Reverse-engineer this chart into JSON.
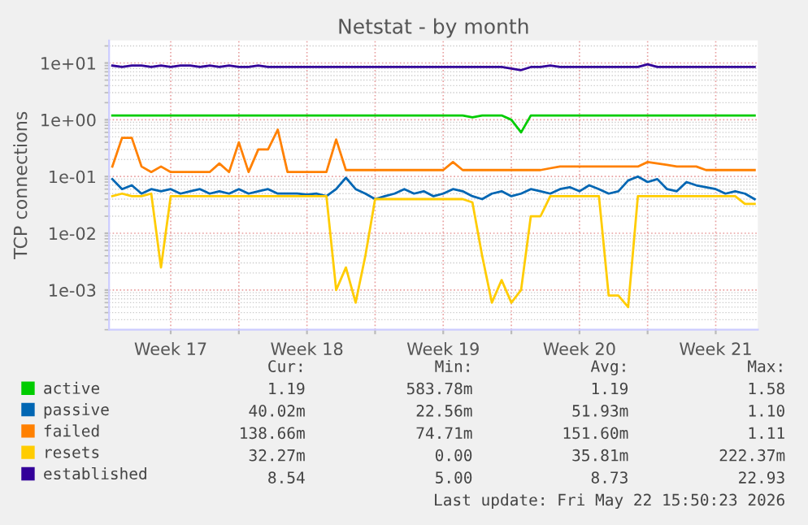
{
  "chart_data": {
    "type": "line",
    "title": "Netstat - by month",
    "ylabel": "TCP connections",
    "log": "y",
    "grid": true,
    "legend": "bottom left",
    "marker": "none",
    "line_style": "solid",
    "ylim": [
      0.0002,
      25
    ],
    "yticks": [
      {
        "value": 0.001,
        "label": "1e-03"
      },
      {
        "value": 0.01,
        "label": "1e-02"
      },
      {
        "value": 0.1,
        "label": "1e-01"
      },
      {
        "value": 1,
        "label": "1e+00"
      },
      {
        "value": 10,
        "label": "1e+01"
      }
    ],
    "xlim": [
      "2026-04-20T08:00",
      "2026-05-23T16:00"
    ],
    "xticks": [
      {
        "value": "2026-04-23T12:00",
        "label": "Week 17"
      },
      {
        "value": "2026-04-27",
        "label": null
      },
      {
        "value": "2026-04-30T12:00",
        "label": "Week 18"
      },
      {
        "value": "2026-05-04",
        "label": null
      },
      {
        "value": "2026-05-07T12:00",
        "label": "Week 19"
      },
      {
        "value": "2026-05-11",
        "label": null
      },
      {
        "value": "2026-05-14T12:00",
        "label": "Week 20"
      },
      {
        "value": "2026-05-18",
        "label": null
      },
      {
        "value": "2026-05-21T12:00",
        "label": "Week 21"
      }
    ],
    "x": [
      "2026-04-20T12:00",
      "2026-04-21",
      "2026-04-21T12:00",
      "2026-04-22",
      "2026-04-22T12:00",
      "2026-04-23",
      "2026-04-23T12:00",
      "2026-04-24",
      "2026-04-24T12:00",
      "2026-04-25",
      "2026-04-25T12:00",
      "2026-04-26",
      "2026-04-26T12:00",
      "2026-04-27",
      "2026-04-27T12:00",
      "2026-04-28",
      "2026-04-28T12:00",
      "2026-04-29",
      "2026-04-29T12:00",
      "2026-04-30",
      "2026-04-30T12:00",
      "2026-05-01",
      "2026-05-01T12:00",
      "2026-05-02",
      "2026-05-02T12:00",
      "2026-05-03",
      "2026-05-03T12:00",
      "2026-05-04",
      "2026-05-04T12:00",
      "2026-05-05",
      "2026-05-05T12:00",
      "2026-05-06",
      "2026-05-06T12:00",
      "2026-05-07",
      "2026-05-07T12:00",
      "2026-05-08",
      "2026-05-08T12:00",
      "2026-05-09",
      "2026-05-09T12:00",
      "2026-05-10",
      "2026-05-10T12:00",
      "2026-05-11",
      "2026-05-11T12:00",
      "2026-05-12",
      "2026-05-12T12:00",
      "2026-05-13",
      "2026-05-13T12:00",
      "2026-05-14",
      "2026-05-14T12:00",
      "2026-05-15",
      "2026-05-15T12:00",
      "2026-05-16",
      "2026-05-16T12:00",
      "2026-05-17",
      "2026-05-17T12:00",
      "2026-05-18",
      "2026-05-18T12:00",
      "2026-05-19",
      "2026-05-19T12:00",
      "2026-05-20",
      "2026-05-20T12:00",
      "2026-05-21",
      "2026-05-21T12:00",
      "2026-05-22",
      "2026-05-22T12:00",
      "2026-05-23",
      "2026-05-23T12:00"
    ],
    "series": [
      {
        "name": "active",
        "color": "#00cc00",
        "values": [
          1.19,
          1.19,
          1.19,
          1.19,
          1.19,
          1.19,
          1.19,
          1.19,
          1.19,
          1.19,
          1.19,
          1.19,
          1.19,
          1.19,
          1.19,
          1.19,
          1.19,
          1.19,
          1.19,
          1.19,
          1.19,
          1.19,
          1.19,
          1.19,
          1.19,
          1.19,
          1.19,
          1.19,
          1.19,
          1.19,
          1.19,
          1.19,
          1.19,
          1.19,
          1.19,
          1.19,
          1.19,
          1.1,
          1.19,
          1.19,
          1.19,
          1.0,
          0.6,
          1.19,
          1.19,
          1.19,
          1.19,
          1.19,
          1.19,
          1.19,
          1.19,
          1.19,
          1.19,
          1.19,
          1.19,
          1.19,
          1.19,
          1.19,
          1.19,
          1.19,
          1.19,
          1.19,
          1.19,
          1.19,
          1.19,
          1.19,
          1.19
        ]
      },
      {
        "name": "passive",
        "color": "#0066b3",
        "values": [
          0.09,
          0.06,
          0.07,
          0.05,
          0.06,
          0.055,
          0.06,
          0.05,
          0.055,
          0.06,
          0.05,
          0.055,
          0.05,
          0.06,
          0.05,
          0.055,
          0.06,
          0.05,
          0.05,
          0.05,
          0.048,
          0.05,
          0.045,
          0.06,
          0.095,
          0.06,
          0.05,
          0.04,
          0.045,
          0.05,
          0.06,
          0.05,
          0.055,
          0.045,
          0.05,
          0.06,
          0.055,
          0.045,
          0.04,
          0.05,
          0.055,
          0.045,
          0.05,
          0.06,
          0.055,
          0.05,
          0.06,
          0.065,
          0.055,
          0.07,
          0.06,
          0.05,
          0.055,
          0.085,
          0.1,
          0.08,
          0.09,
          0.06,
          0.055,
          0.08,
          0.07,
          0.065,
          0.06,
          0.05,
          0.055,
          0.05,
          0.04
        ]
      },
      {
        "name": "failed",
        "color": "#ff8000",
        "values": [
          0.15,
          0.48,
          0.48,
          0.15,
          0.12,
          0.15,
          0.12,
          0.12,
          0.12,
          0.12,
          0.12,
          0.17,
          0.12,
          0.4,
          0.12,
          0.3,
          0.3,
          0.67,
          0.12,
          0.12,
          0.12,
          0.12,
          0.12,
          0.45,
          0.13,
          0.13,
          0.13,
          0.13,
          0.13,
          0.13,
          0.13,
          0.13,
          0.13,
          0.13,
          0.13,
          0.18,
          0.13,
          0.13,
          0.13,
          0.13,
          0.13,
          0.13,
          0.13,
          0.13,
          0.13,
          0.14,
          0.15,
          0.15,
          0.15,
          0.15,
          0.15,
          0.15,
          0.15,
          0.15,
          0.15,
          0.18,
          0.17,
          0.16,
          0.15,
          0.15,
          0.15,
          0.13,
          0.13,
          0.13,
          0.13,
          0.13,
          0.13
        ]
      },
      {
        "name": "resets",
        "color": "#ffcc00",
        "values": [
          0.045,
          0.05,
          0.045,
          0.045,
          0.05,
          0.0025,
          0.045,
          0.045,
          0.045,
          0.045,
          0.045,
          0.045,
          0.045,
          0.045,
          0.045,
          0.045,
          0.045,
          0.045,
          0.045,
          0.045,
          0.045,
          0.045,
          0.045,
          0.001,
          0.0025,
          0.0006,
          0.004,
          0.04,
          0.04,
          0.04,
          0.04,
          0.04,
          0.04,
          0.04,
          0.04,
          0.04,
          0.04,
          0.035,
          0.004,
          0.0006,
          0.0015,
          0.0006,
          0.001,
          0.02,
          0.02,
          0.045,
          0.045,
          0.045,
          0.045,
          0.045,
          0.045,
          0.0008,
          0.0008,
          0.0005,
          0.045,
          0.045,
          0.045,
          0.045,
          0.045,
          0.045,
          0.045,
          0.045,
          0.045,
          0.045,
          0.045,
          0.033,
          0.033
        ]
      },
      {
        "name": "established",
        "color": "#330099",
        "values": [
          9,
          8.5,
          9,
          9,
          8.5,
          9,
          8.5,
          9,
          9,
          8.5,
          9,
          8.5,
          9,
          8.5,
          8.5,
          9,
          8.5,
          8.5,
          8.5,
          8.5,
          8.5,
          8.5,
          8.5,
          8.5,
          8.5,
          8.5,
          8.5,
          8.5,
          8.5,
          8.5,
          8.5,
          8.5,
          8.5,
          8.5,
          8.5,
          8.5,
          8.5,
          8.5,
          8.5,
          8.5,
          8.5,
          8,
          7.5,
          8.5,
          8.5,
          9,
          8.5,
          8.5,
          8.5,
          8.5,
          8.5,
          8.5,
          8.5,
          8.5,
          8.5,
          9.5,
          8.5,
          8.5,
          8.5,
          8.5,
          8.5,
          8.5,
          8.5,
          8.5,
          8.5,
          8.5,
          8.5
        ]
      }
    ],
    "annotations": [
      "Cur:",
      "Min:",
      "Avg:",
      "Max:",
      "1.19",
      "583.78m",
      "1.19",
      "1.58",
      "40.02m",
      "22.56m",
      "51.93m",
      "1.10",
      "138.66m",
      "74.71m",
      "151.60m",
      "1.11",
      "32.27m",
      "0.00",
      "35.81m",
      "222.37m",
      "8.54",
      "5.00",
      "8.73",
      "22.93",
      "Last update: Fri May 22 15:50:23 2026"
    ]
  }
}
